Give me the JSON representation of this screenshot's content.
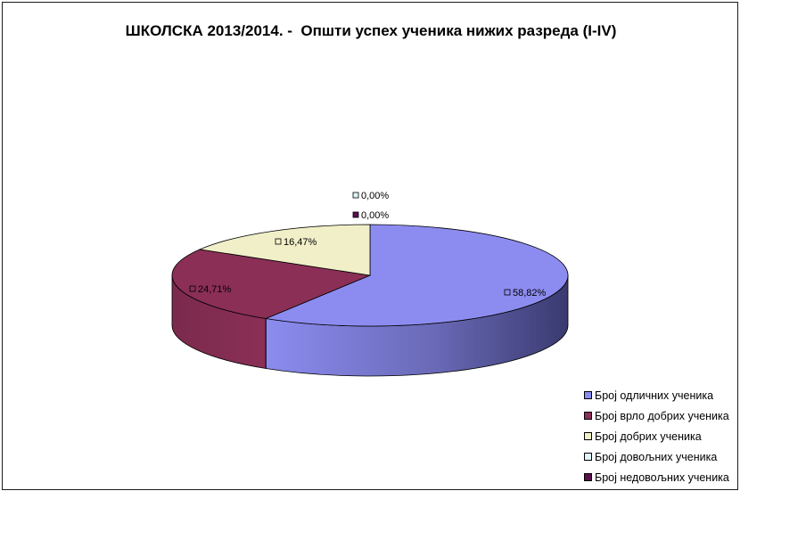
{
  "chart_data": {
    "type": "pie",
    "style": "3d",
    "title": "ШКОЛСКА 2013/2014. -  Општи успех ученика нижих разреда (I-IV)",
    "labels": [
      "Број одличних ученика",
      "Број врло добрих ученика",
      "Број добрих ученика",
      "Број довољних ученика",
      "Број недовољних ученика"
    ],
    "values": [
      58.82,
      24.71,
      16.47,
      0.0,
      0.0
    ],
    "value_labels": [
      "58,82%",
      "24,71%",
      "16,47%",
      "0,00%",
      "0,00%"
    ],
    "colors": [
      "#8c8cf0",
      "#8b2f57",
      "#f0efc8",
      "#dff4f7",
      "#5a0f4d"
    ],
    "legend_position": "bottom-right"
  }
}
